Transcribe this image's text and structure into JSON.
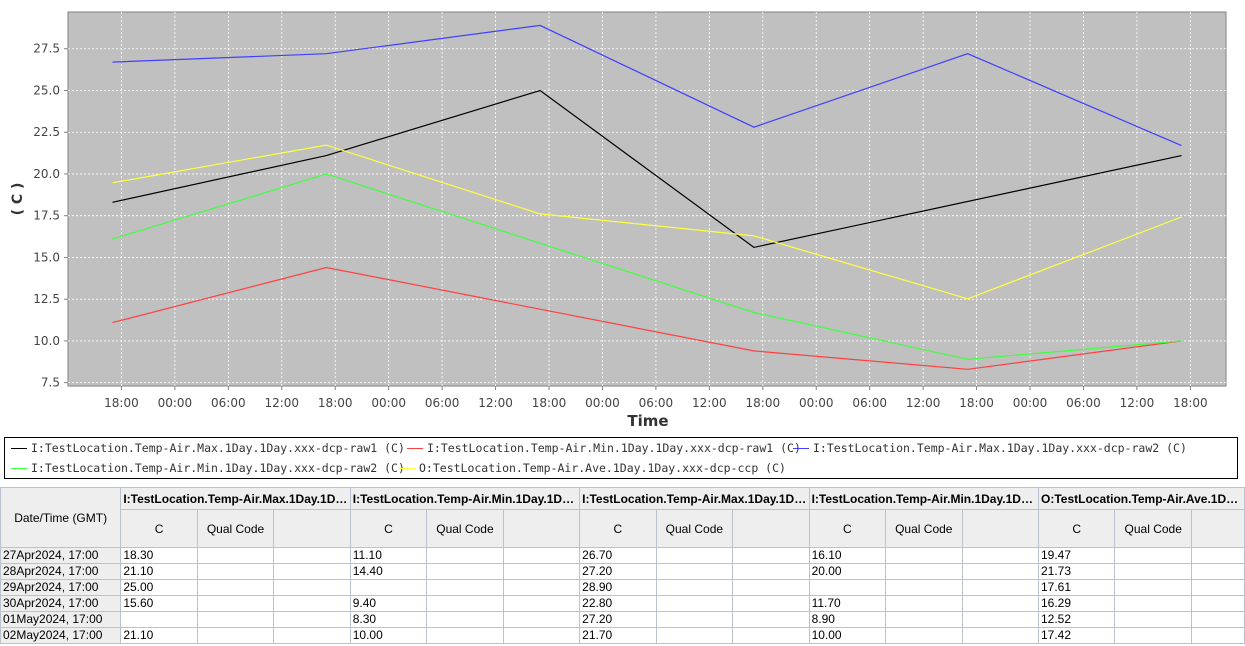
{
  "chart_data": {
    "type": "line",
    "title": "",
    "xlabel": "Time",
    "ylabel": "( C )",
    "ylim": [
      7.3,
      29.7
    ],
    "yticks": [
      "7.5",
      "10.0",
      "12.5",
      "15.0",
      "17.5",
      "20.0",
      "22.5",
      "25.0",
      "27.5"
    ],
    "ytick_values": [
      7.5,
      10.0,
      12.5,
      15.0,
      17.5,
      20.0,
      22.5,
      25.0,
      27.5
    ],
    "xrange_hours": [
      -5,
      125
    ],
    "xticks": [
      "18:00",
      "00:00",
      "06:00",
      "12:00",
      "18:00",
      "00:00",
      "06:00",
      "12:00",
      "18:00",
      "00:00",
      "06:00",
      "12:00",
      "18:00",
      "00:00",
      "06:00",
      "12:00",
      "18:00",
      "00:00",
      "06:00",
      "12:00",
      "18:00"
    ],
    "xtick_hours": [
      1,
      7,
      13,
      19,
      25,
      31,
      37,
      43,
      49,
      55,
      61,
      67,
      73,
      79,
      85,
      91,
      97,
      103,
      109,
      115,
      121
    ],
    "grid": true,
    "background": "#c0c0c0",
    "x": [
      "27Apr2024, 17:00",
      "28Apr2024, 17:00",
      "29Apr2024, 17:00",
      "30Apr2024, 17:00",
      "01May2024, 17:00",
      "02May2024, 17:00"
    ],
    "x_hours": [
      0,
      24,
      48,
      72,
      96,
      120
    ],
    "series": [
      {
        "name": "I:TestLocation.Temp-Air.Max.1Day.1Day.xxx-dcp-raw1 (C)",
        "color": "#000000",
        "values": [
          18.3,
          21.1,
          25.0,
          15.6,
          null,
          21.1
        ]
      },
      {
        "name": "I:TestLocation.Temp-Air.Min.1Day.1Day.xxx-dcp-raw1 (C)",
        "color": "#ff4040",
        "values": [
          11.1,
          14.4,
          null,
          9.4,
          8.3,
          10.0
        ]
      },
      {
        "name": "I:TestLocation.Temp-Air.Max.1Day.1Day.xxx-dcp-raw2 (C)",
        "color": "#4040ff",
        "values": [
          26.7,
          27.2,
          28.9,
          22.8,
          27.2,
          21.7
        ]
      },
      {
        "name": "I:TestLocation.Temp-Air.Min.1Day.1Day.xxx-dcp-raw2 (C)",
        "color": "#40ff40",
        "values": [
          16.1,
          20.0,
          null,
          11.7,
          8.9,
          10.0
        ]
      },
      {
        "name": "O:TestLocation.Temp-Air.Ave.1Day.1Day.xxx-dcp-ccp (C)",
        "color": "#ffff40",
        "values": [
          19.47,
          21.73,
          17.61,
          16.29,
          12.52,
          17.42
        ]
      }
    ]
  },
  "table": {
    "date_header": "Date/Time (GMT)",
    "series_headers": [
      "I:TestLocation.Temp-Air.Max.1Day.1Da...",
      "I:TestLocation.Temp-Air.Min.1Day.1Day...",
      "I:TestLocation.Temp-Air.Max.1Day.1Da...",
      "I:TestLocation.Temp-Air.Min.1Day.1Day...",
      "O:TestLocation.Temp-Air.Ave.1Day.1D..."
    ],
    "unit_label": "C",
    "qual_label": "Qual Code",
    "rows": [
      {
        "date": "27Apr2024, 17:00",
        "values": [
          "18.30",
          "11.10",
          "26.70",
          "16.10",
          "19.47"
        ]
      },
      {
        "date": "28Apr2024, 17:00",
        "values": [
          "21.10",
          "14.40",
          "27.20",
          "20.00",
          "21.73"
        ]
      },
      {
        "date": "29Apr2024, 17:00",
        "values": [
          "25.00",
          "",
          "28.90",
          "",
          "17.61"
        ]
      },
      {
        "date": "30Apr2024, 17:00",
        "values": [
          "15.60",
          "9.40",
          "22.80",
          "11.70",
          "16.29"
        ]
      },
      {
        "date": "01May2024, 17:00",
        "values": [
          "",
          "8.30",
          "27.20",
          "8.90",
          "12.52"
        ]
      },
      {
        "date": "02May2024, 17:00",
        "values": [
          "21.10",
          "10.00",
          "21.70",
          "10.00",
          "17.42"
        ]
      }
    ]
  }
}
